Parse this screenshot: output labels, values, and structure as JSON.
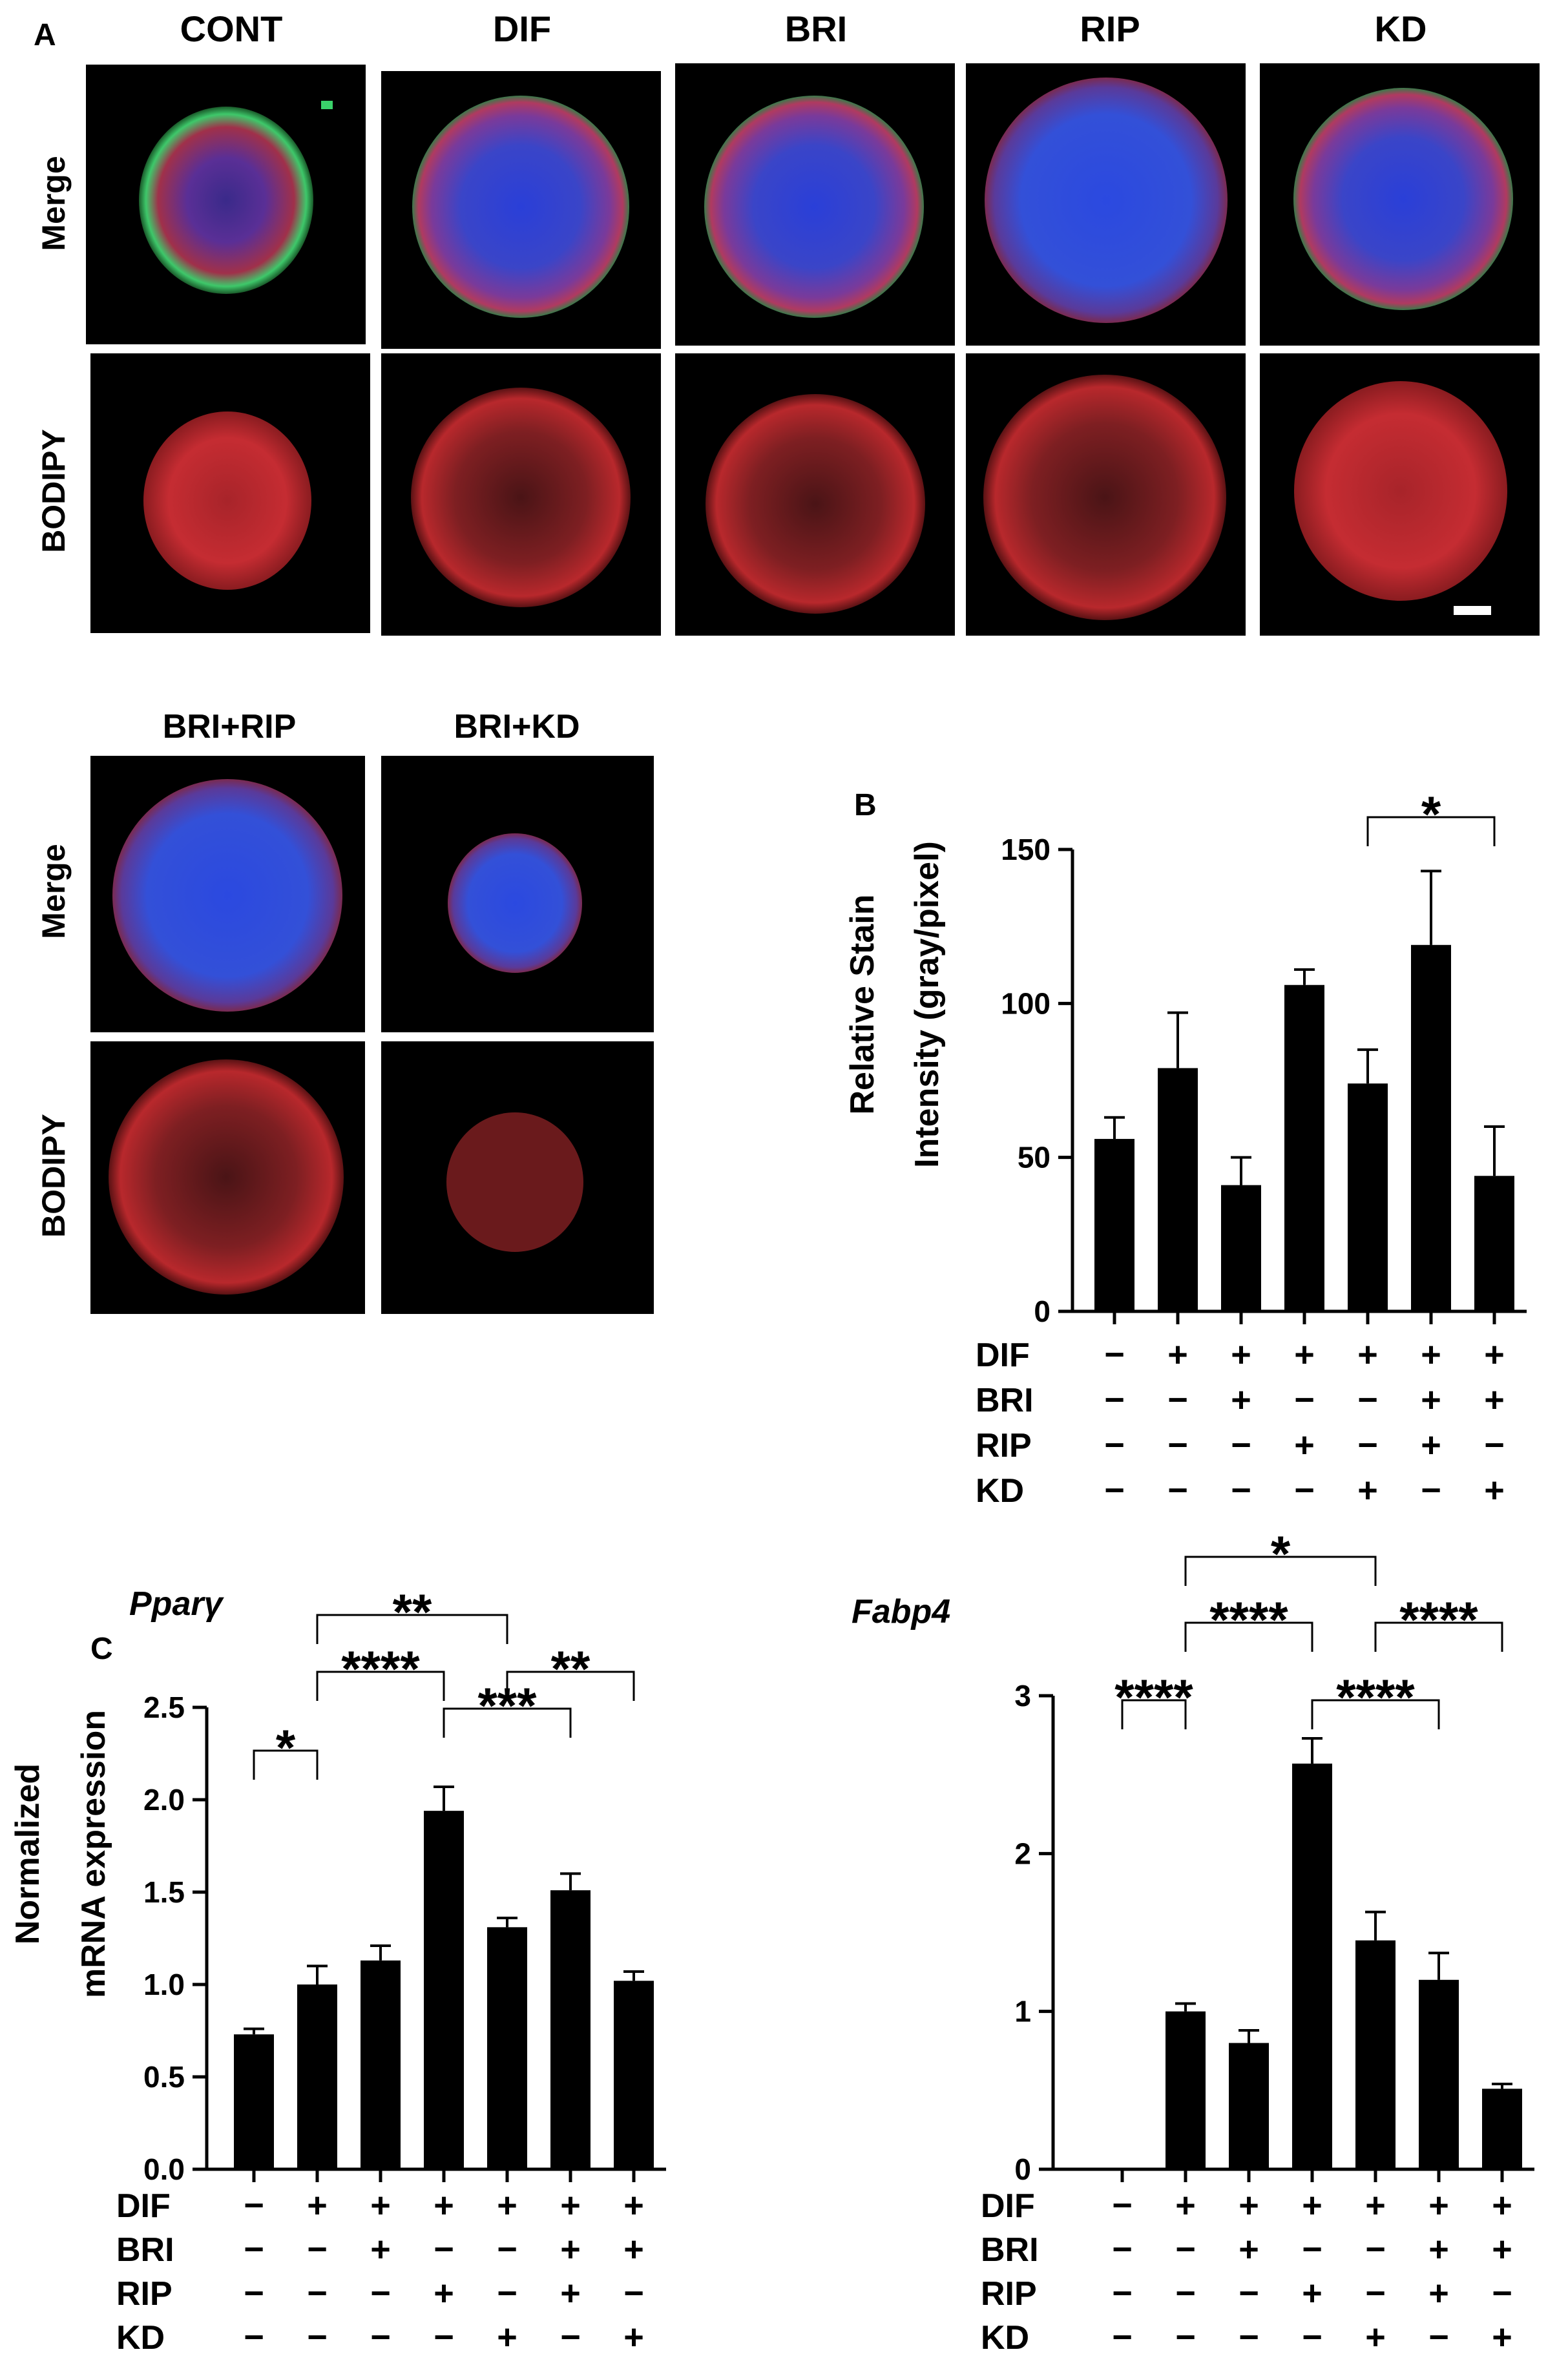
{
  "panel_labels": {
    "A": "A",
    "B": "B",
    "C": "C"
  },
  "micrographs": {
    "row_labels": {
      "merge": "Merge",
      "bodipy": "BODIPY"
    },
    "top_columns": [
      "CONT",
      "DIF",
      "BRI",
      "RIP",
      "KD"
    ],
    "bottom_columns": [
      "BRI+RIP",
      "BRI+KD"
    ],
    "colors": {
      "dapi": "#2a3fd8",
      "neutral_lipid": "#c8202a",
      "membrane": "#3ad26a",
      "background": "#000000"
    }
  },
  "treatment_rows": {
    "labels": [
      "DIF",
      "BRI",
      "RIP",
      "KD"
    ],
    "matrix": [
      [
        "−",
        "+",
        "+",
        "+",
        "+",
        "+",
        "+"
      ],
      [
        "−",
        "−",
        "+",
        "−",
        "−",
        "+",
        "+"
      ],
      [
        "−",
        "−",
        "−",
        "+",
        "−",
        "+",
        "−"
      ],
      [
        "−",
        "−",
        "−",
        "−",
        "+",
        "−",
        "+"
      ]
    ]
  },
  "chart_data": [
    {
      "id": "B",
      "type": "bar",
      "title": "",
      "ylabel": [
        "Relative Stain",
        "Intensity (gray/pixel)"
      ],
      "ylim": [
        0,
        150
      ],
      "yticks": [
        0,
        50,
        100,
        150
      ],
      "ytick_labels": [
        "0",
        "50",
        "100",
        "150"
      ],
      "categories": [
        "1",
        "2",
        "3",
        "4",
        "5",
        "6",
        "7"
      ],
      "values": [
        56,
        79,
        41,
        106,
        74,
        119,
        44
      ],
      "errors": [
        7,
        18,
        9,
        5,
        11,
        24,
        16
      ],
      "significance": [
        {
          "from": 4,
          "to": 6,
          "label": "*"
        }
      ]
    },
    {
      "id": "C-Pparg",
      "type": "bar",
      "title": "Pparγ",
      "ylabel": [
        "Normalized",
        "mRNA expression"
      ],
      "ylim": [
        0,
        2.5
      ],
      "yticks": [
        0,
        0.5,
        1.0,
        1.5,
        2.0,
        2.5
      ],
      "ytick_labels": [
        "0.0",
        "0.5",
        "1.0",
        "1.5",
        "2.0",
        "2.5"
      ],
      "categories": [
        "1",
        "2",
        "3",
        "4",
        "5",
        "6",
        "7"
      ],
      "values": [
        0.73,
        1.0,
        1.13,
        1.94,
        1.31,
        1.51,
        1.02
      ],
      "errors": [
        0.03,
        0.1,
        0.08,
        0.13,
        0.05,
        0.09,
        0.05
      ],
      "significance": [
        {
          "from": 0,
          "to": 1,
          "label": "*"
        },
        {
          "from": 1,
          "to": 3,
          "label": "****"
        },
        {
          "from": 1,
          "to": 4,
          "label": "**"
        },
        {
          "from": 3,
          "to": 5,
          "label": "***"
        },
        {
          "from": 4,
          "to": 6,
          "label": "**"
        }
      ]
    },
    {
      "id": "C-Fabp4",
      "type": "bar",
      "title": "Fabp4",
      "ylabel": [],
      "ylim": [
        0,
        3
      ],
      "yticks": [
        0,
        1,
        2,
        3
      ],
      "ytick_labels": [
        "0",
        "1",
        "2",
        "3"
      ],
      "categories": [
        "1",
        "2",
        "3",
        "4",
        "5",
        "6",
        "7"
      ],
      "values": [
        0,
        1.0,
        0.8,
        2.57,
        1.45,
        1.2,
        0.51
      ],
      "errors": [
        0,
        0.05,
        0.08,
        0.16,
        0.18,
        0.17,
        0.03
      ],
      "significance": [
        {
          "from": 0,
          "to": 1,
          "label": "****"
        },
        {
          "from": 1,
          "to": 3,
          "label": "****"
        },
        {
          "from": 1,
          "to": 4,
          "label": "*"
        },
        {
          "from": 3,
          "to": 5,
          "label": "****"
        },
        {
          "from": 4,
          "to": 6,
          "label": "****"
        }
      ]
    }
  ]
}
